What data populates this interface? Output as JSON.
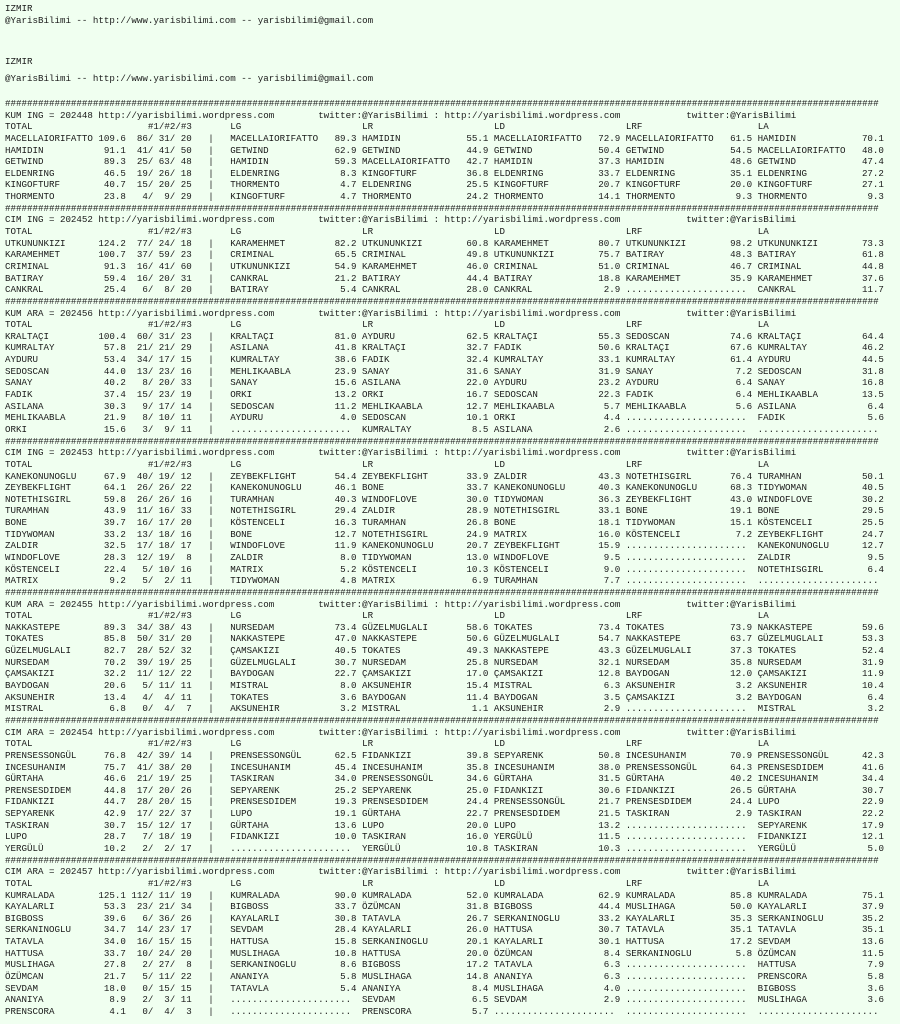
{
  "page_header": [
    {
      "city": "IZMIR",
      "contact": "@YarisBilimi -- http://www.yarisbilimi.com -- yarisbilimi@gmail.com"
    },
    {
      "city": "IZMIR",
      "contact": "@YarisBilimi -- http://www.yarisbilimi.com -- yarisbilimi@gmail.com"
    }
  ],
  "separator": "###############################################################################################################################################################",
  "url": "http://yarisbilimi.wordpress.com",
  "twitter": "twitter:@YarisBilimi",
  "twitter_sep": ":",
  "count_sep": "/",
  "col_sep": "|",
  "empty_marker": "......................",
  "columns": {
    "total": "TOTAL",
    "counts": "#1/#2/#3",
    "blocks": [
      "LG",
      "LR",
      "LD",
      "LRF",
      "LA"
    ]
  },
  "sections": [
    {
      "code": "KUM ING = 202448",
      "rows": [
        [
          "MACELLAIORIFATTO",
          "109.6",
          "86",
          "31",
          "20",
          "MACELLAIORIFATTO",
          "89.3",
          "HAMIDIN",
          "55.1",
          "MACELLAIORIFATTO",
          "72.9",
          "MACELLAIORIFATTO",
          "61.5",
          "HAMIDIN",
          "70.1"
        ],
        [
          "HAMIDIN",
          "91.1",
          "41",
          "41",
          "50",
          "GETWIND",
          "62.9",
          "GETWIND",
          "44.9",
          "GETWIND",
          "50.4",
          "GETWIND",
          "54.5",
          "MACELLAIORIFATTO",
          "48.0"
        ],
        [
          "GETWIND",
          "89.3",
          "25",
          "63",
          "48",
          "HAMIDIN",
          "59.3",
          "MACELLAIORIFATTO",
          "42.7",
          "HAMIDIN",
          "37.3",
          "HAMIDIN",
          "48.6",
          "GETWIND",
          "47.4"
        ],
        [
          "ELDENRING",
          "46.5",
          "19",
          "26",
          "18",
          "ELDENRING",
          "8.3",
          "KINGOFTURF",
          "36.8",
          "ELDENRING",
          "33.7",
          "ELDENRING",
          "35.1",
          "ELDENRING",
          "27.2"
        ],
        [
          "KINGOFTURF",
          "40.7",
          "15",
          "20",
          "25",
          "THORMENTO",
          "4.7",
          "ELDENRING",
          "25.5",
          "KINGOFTURF",
          "20.7",
          "KINGOFTURF",
          "20.0",
          "KINGOFTURF",
          "27.1"
        ],
        [
          "THORMENTO",
          "23.8",
          "4",
          "9",
          "29",
          "KINGOFTURF",
          "4.7",
          "THORMENTO",
          "24.2",
          "THORMENTO",
          "14.1",
          "THORMENTO",
          "9.3",
          "THORMENTO",
          "9.3"
        ]
      ]
    },
    {
      "code": "CIM ING = 202452",
      "rows": [
        [
          "UTKUNUNKIZI",
          "124.2",
          "77",
          "24",
          "18",
          "KARAMEHMET",
          "82.2",
          "UTKUNUNKIZI",
          "60.8",
          "KARAMEHMET",
          "80.7",
          "UTKUNUNKIZI",
          "98.2",
          "UTKUNUNKIZI",
          "73.3"
        ],
        [
          "KARAMEHMET",
          "100.7",
          "37",
          "59",
          "23",
          "CRIMINAL",
          "65.5",
          "CRIMINAL",
          "49.8",
          "UTKUNUNKIZI",
          "75.7",
          "BATIRAY",
          "48.3",
          "BATIRAY",
          "61.8"
        ],
        [
          "CRIMINAL",
          "91.3",
          "16",
          "41",
          "60",
          "UTKUNUNKIZI",
          "54.9",
          "KARAMEHMET",
          "46.0",
          "CRIMINAL",
          "51.0",
          "CRIMINAL",
          "46.7",
          "CRIMINAL",
          "44.8"
        ],
        [
          "BATIRAY",
          "59.4",
          "16",
          "20",
          "31",
          "CANKRAL",
          "21.2",
          "BATIRAY",
          "44.4",
          "BATIRAY",
          "18.8",
          "KARAMEHMET",
          "35.9",
          "KARAMEHMET",
          "37.6"
        ],
        [
          "CANKRAL",
          "25.4",
          "6",
          "8",
          "20",
          "BATIRAY",
          "5.4",
          "CANKRAL",
          "28.0",
          "CANKRAL",
          "2.9",
          "",
          "",
          "CANKRAL",
          "11.7"
        ]
      ]
    },
    {
      "code": "KUM ARA = 202456",
      "rows": [
        [
          "KRALTAÇI",
          "100.4",
          "60",
          "31",
          "23",
          "KRALTAÇI",
          "81.0",
          "AYDURU",
          "62.5",
          "KRALTAÇI",
          "55.3",
          "SEDOSCAN",
          "74.6",
          "KRALTAÇI",
          "64.4"
        ],
        [
          "KUMRALTAY",
          "57.8",
          "21",
          "21",
          "29",
          "ASILANA",
          "41.8",
          "KRALTAÇI",
          "32.7",
          "FADIK",
          "50.6",
          "KRALTAÇI",
          "67.6",
          "KUMRALTAY",
          "46.2"
        ],
        [
          "AYDURU",
          "53.4",
          "34",
          "17",
          "15",
          "KUMRALTAY",
          "38.6",
          "FADIK",
          "32.4",
          "KUMRALTAY",
          "33.1",
          "KUMRALTAY",
          "61.4",
          "AYDURU",
          "44.5"
        ],
        [
          "SEDOSCAN",
          "44.0",
          "13",
          "23",
          "16",
          "MEHLIKAABLA",
          "23.9",
          "SANAY",
          "31.6",
          "SANAY",
          "31.9",
          "SANAY",
          "7.2",
          "SEDOSCAN",
          "31.8"
        ],
        [
          "SANAY",
          "40.2",
          "8",
          "20",
          "33",
          "SANAY",
          "15.6",
          "ASILANA",
          "22.0",
          "AYDURU",
          "23.2",
          "AYDURU",
          "6.4",
          "SANAY",
          "16.8"
        ],
        [
          "FADIK",
          "37.4",
          "15",
          "23",
          "19",
          "ORKI",
          "13.2",
          "ORKI",
          "16.7",
          "SEDOSCAN",
          "22.3",
          "FADIK",
          "6.4",
          "MEHLIKAABLA",
          "13.5"
        ],
        [
          "ASILANA",
          "30.3",
          "9",
          "17",
          "14",
          "SEDOSCAN",
          "11.2",
          "MEHLIKAABLA",
          "12.7",
          "MEHLIKAABLA",
          "5.7",
          "MEHLIKAABLA",
          "5.6",
          "ASILANA",
          "6.4"
        ],
        [
          "MEHLIKAABLA",
          "21.9",
          "8",
          "10",
          "11",
          "AYDURU",
          "4.0",
          "SEDOSCAN",
          "10.1",
          "ORKI",
          "4.4",
          "",
          "",
          "FADIK",
          "5.6"
        ],
        [
          "ORKI",
          "15.6",
          "3",
          "9",
          "11",
          "",
          "",
          "KUMRALTAY",
          "8.5",
          "ASILANA",
          "2.6",
          "",
          "",
          "",
          ""
        ]
      ]
    },
    {
      "code": "CIM ING = 202453",
      "rows": [
        [
          "KANEKONUNOGLU",
          "67.9",
          "40",
          "19",
          "12",
          "ZEYBEKFLIGHT",
          "54.4",
          "ZEYBEKFLIGHT",
          "33.9",
          "ZALDIR",
          "43.3",
          "NOTETHISGIRL",
          "76.4",
          "TURAMHAN",
          "50.1"
        ],
        [
          "ZEYBEKFLIGHT",
          "64.1",
          "26",
          "26",
          "22",
          "KANEKONUNOGLU",
          "46.1",
          "BONE",
          "33.7",
          "KANEKONUNOGLU",
          "40.3",
          "KANEKONUNOGLU",
          "68.3",
          "TIDYWOMAN",
          "40.5"
        ],
        [
          "NOTETHISGIRL",
          "59.8",
          "26",
          "26",
          "16",
          "TURAMHAN",
          "40.3",
          "WINDOFLOVE",
          "30.0",
          "TIDYWOMAN",
          "36.3",
          "ZEYBEKFLIGHT",
          "43.0",
          "WINDOFLOVE",
          "30.2"
        ],
        [
          "TURAMHAN",
          "43.9",
          "11",
          "16",
          "33",
          "NOTETHISGIRL",
          "29.4",
          "ZALDIR",
          "28.9",
          "NOTETHISGIRL",
          "33.1",
          "BONE",
          "19.1",
          "BONE",
          "29.5"
        ],
        [
          "BONE",
          "39.7",
          "16",
          "17",
          "20",
          "KÖSTENCELI",
          "16.3",
          "TURAMHAN",
          "26.8",
          "BONE",
          "18.1",
          "TIDYWOMAN",
          "15.1",
          "KÖSTENCELI",
          "25.5"
        ],
        [
          "TIDYWOMAN",
          "33.2",
          "13",
          "18",
          "16",
          "BONE",
          "12.7",
          "NOTETHISGIRL",
          "24.9",
          "MATRIX",
          "16.0",
          "KÖSTENCELI",
          "7.2",
          "ZEYBEKFLIGHT",
          "24.7"
        ],
        [
          "ZALDIR",
          "32.5",
          "17",
          "18",
          "17",
          "WINDOFLOVE",
          "11.9",
          "KANEKONUNOGLU",
          "20.7",
          "ZEYBEKFLIGHT",
          "15.9",
          "",
          "",
          "KANEKONUNOGLU",
          "12.7"
        ],
        [
          "WINDOFLOVE",
          "28.3",
          "12",
          "19",
          "8",
          "ZALDIR",
          "8.0",
          "TIDYWOMAN",
          "13.0",
          "WINDOFLOVE",
          "9.5",
          "",
          "",
          "ZALDIR",
          "9.5"
        ],
        [
          "KÖSTENCELI",
          "22.4",
          "5",
          "10",
          "16",
          "MATRIX",
          "5.2",
          "KÖSTENCELI",
          "10.3",
          "KÖSTENCELI",
          "9.0",
          "",
          "",
          "NOTETHISGIRL",
          "6.4"
        ],
        [
          "MATRIX",
          "9.2",
          "5",
          "2",
          "11",
          "TIDYWOMAN",
          "4.8",
          "MATRIX",
          "6.9",
          "TURAMHAN",
          "7.7",
          "",
          "",
          "",
          ""
        ]
      ]
    },
    {
      "code": "KUM ARA = 202455",
      "rows": [
        [
          "NAKKASTEPE",
          "89.3",
          "34",
          "38",
          "43",
          "NURSEDAM",
          "73.4",
          "GÜZELMUGLALI",
          "58.6",
          "TOKATES",
          "73.4",
          "TOKATES",
          "73.9",
          "NAKKASTEPE",
          "59.6"
        ],
        [
          "TOKATES",
          "85.8",
          "50",
          "31",
          "20",
          "NAKKASTEPE",
          "47.0",
          "NAKKASTEPE",
          "50.6",
          "GÜZELMUGLALI",
          "54.7",
          "NAKKASTEPE",
          "63.7",
          "GÜZELMUGLALI",
          "53.3"
        ],
        [
          "GÜZELMUGLALI",
          "82.7",
          "28",
          "52",
          "32",
          "ÇAMSAKIZI",
          "40.5",
          "TOKATES",
          "49.3",
          "NAKKASTEPE",
          "43.3",
          "GÜZELMUGLALI",
          "37.3",
          "TOKATES",
          "52.4"
        ],
        [
          "NURSEDAM",
          "70.2",
          "39",
          "19",
          "25",
          "GÜZELMUGLALI",
          "30.7",
          "NURSEDAM",
          "25.8",
          "NURSEDAM",
          "32.1",
          "NURSEDAM",
          "35.8",
          "NURSEDAM",
          "31.9"
        ],
        [
          "ÇAMSAKIZI",
          "32.2",
          "11",
          "12",
          "22",
          "BAYDOGAN",
          "22.7",
          "ÇAMSAKIZI",
          "17.0",
          "ÇAMSAKIZI",
          "12.8",
          "BAYDOGAN",
          "12.0",
          "ÇAMSAKIZI",
          "11.9"
        ],
        [
          "BAYDOGAN",
          "20.6",
          "5",
          "11",
          "11",
          "MISTRAL",
          "8.0",
          "AKSUNEHIR",
          "15.4",
          "MISTRAL",
          "6.3",
          "AKSUNEHIR",
          "3.2",
          "AKSUNEHIR",
          "10.4"
        ],
        [
          "AKSUNEHIR",
          "13.4",
          "4",
          "4",
          "11",
          "TOKATES",
          "3.6",
          "BAYDOGAN",
          "11.4",
          "BAYDOGAN",
          "3.5",
          "ÇAMSAKIZI",
          "3.2",
          "BAYDOGAN",
          "6.4"
        ],
        [
          "MISTRAL",
          "6.8",
          "0",
          "4",
          "7",
          "AKSUNEHIR",
          "3.2",
          "MISTRAL",
          "1.1",
          "AKSUNEHIR",
          "2.9",
          "",
          "",
          "MISTRAL",
          "3.2"
        ]
      ]
    },
    {
      "code": "CIM ARA = 202454",
      "rows": [
        [
          "PRENSESSONGÜL",
          "76.8",
          "42",
          "39",
          "14",
          "PRENSESSONGÜL",
          "62.5",
          "FIDANKIZI",
          "39.8",
          "SEPYARENK",
          "50.8",
          "INCESUHANIM",
          "70.9",
          "PRENSESSONGÜL",
          "42.3"
        ],
        [
          "INCESUHANIM",
          "75.7",
          "41",
          "38",
          "20",
          "INCESUHANIM",
          "45.4",
          "INCESUHANIM",
          "35.8",
          "INCESUHANIM",
          "38.0",
          "PRENSESSONGÜL",
          "64.3",
          "PRENSESDIDEM",
          "41.6"
        ],
        [
          "GÜRTAHA",
          "46.6",
          "21",
          "19",
          "25",
          "TASKIRAN",
          "34.0",
          "PRENSESSONGÜL",
          "34.6",
          "GÜRTAHA",
          "31.5",
          "GÜRTAHA",
          "40.2",
          "INCESUHANIM",
          "34.4"
        ],
        [
          "PRENSESDIDEM",
          "44.8",
          "17",
          "20",
          "26",
          "SEPYARENK",
          "25.2",
          "SEPYARENK",
          "25.0",
          "FIDANKIZI",
          "30.6",
          "FIDANKIZI",
          "26.5",
          "GÜRTAHA",
          "30.7"
        ],
        [
          "FIDANKIZI",
          "44.7",
          "28",
          "20",
          "15",
          "PRENSESDIDEM",
          "19.3",
          "PRENSESDIDEM",
          "24.4",
          "PRENSESSONGÜL",
          "21.7",
          "PRENSESDIDEM",
          "24.4",
          "LUPO",
          "22.9"
        ],
        [
          "SEPYARENK",
          "42.9",
          "17",
          "22",
          "37",
          "LUPO",
          "19.1",
          "GÜRTAHA",
          "22.7",
          "PRENSESDIDEM",
          "21.5",
          "TASKIRAN",
          "2.9",
          "TASKIRAN",
          "22.2"
        ],
        [
          "TASKIRAN",
          "30.7",
          "15",
          "12",
          "17",
          "GÜRTAHA",
          "13.6",
          "LUPO",
          "20.0",
          "LUPO",
          "13.2",
          "",
          "",
          "SEPYARENK",
          "17.9"
        ],
        [
          "LUPO",
          "28.7",
          "7",
          "18",
          "19",
          "FIDANKIZI",
          "10.0",
          "TASKIRAN",
          "16.0",
          "YERGÜLÜ",
          "11.5",
          "",
          "",
          "FIDANKIZI",
          "12.1"
        ],
        [
          "YERGÜLÜ",
          "10.2",
          "2",
          "2",
          "17",
          "",
          "",
          "YERGÜLÜ",
          "10.8",
          "TASKIRAN",
          "10.3",
          "",
          "",
          "YERGÜLÜ",
          "5.0"
        ]
      ]
    },
    {
      "code": "CIM ARA = 202457",
      "rows": [
        [
          "KUMRALADA",
          "125.1",
          "112",
          "11",
          "19",
          "KUMRALADA",
          "90.0",
          "KUMRALADA",
          "52.0",
          "KUMRALADA",
          "62.9",
          "KUMRALADA",
          "85.8",
          "KUMRALADA",
          "75.1"
        ],
        [
          "KAYALARLI",
          "53.3",
          "23",
          "21",
          "34",
          "BIGBOSS",
          "33.7",
          "ÖZÜMCAN",
          "31.8",
          "BIGBOSS",
          "44.4",
          "MUSLIHAGA",
          "50.0",
          "KAYALARLI",
          "37.9"
        ],
        [
          "BIGBOSS",
          "39.6",
          "6",
          "36",
          "26",
          "KAYALARLI",
          "30.8",
          "TATAVLA",
          "26.7",
          "SERKANINOGLU",
          "33.2",
          "KAYALARLI",
          "35.3",
          "SERKANINOGLU",
          "35.2"
        ],
        [
          "SERKANINOGLU",
          "34.7",
          "14",
          "23",
          "17",
          "SEVDAM",
          "28.4",
          "KAYALARLI",
          "26.0",
          "HATTUSA",
          "30.7",
          "TATAVLA",
          "35.1",
          "TATAVLA",
          "35.1"
        ],
        [
          "TATAVLA",
          "34.0",
          "16",
          "15",
          "15",
          "HATTUSA",
          "15.8",
          "SERKANINOGLU",
          "20.1",
          "KAYALARLI",
          "30.1",
          "HATTUSA",
          "17.2",
          "SEVDAM",
          "13.6"
        ],
        [
          "HATTUSA",
          "33.7",
          "10",
          "24",
          "20",
          "MUSLIHAGA",
          "10.8",
          "HATTUSA",
          "20.0",
          "ÖZÜMCAN",
          "8.4",
          "SERKANINOGLU",
          "5.8",
          "ÖZÜMCAN",
          "11.5"
        ],
        [
          "MUSLIHAGA",
          "27.8",
          "2",
          "27",
          "8",
          "SERKANINOGLU",
          "8.6",
          "BIGBOSS",
          "17.2",
          "TATAVLA",
          "6.3",
          "",
          "",
          "HATTUSA",
          "7.9"
        ],
        [
          "ÖZÜMCAN",
          "21.7",
          "5",
          "11",
          "22",
          "ANANIYA",
          "5.8",
          "MUSLIHAGA",
          "14.8",
          "ANANIYA",
          "6.3",
          "",
          "",
          "PRENSCORA",
          "5.8"
        ],
        [
          "SEVDAM",
          "18.0",
          "0",
          "15",
          "15",
          "TATAVLA",
          "5.4",
          "ANANIYA",
          "8.4",
          "MUSLIHAGA",
          "4.0",
          "",
          "",
          "BIGBOSS",
          "3.6"
        ],
        [
          "ANANIYA",
          "8.9",
          "2",
          "3",
          "11",
          "",
          "",
          "SEVDAM",
          "6.5",
          "SEVDAM",
          "2.9",
          "",
          "",
          "MUSLIHAGA",
          "3.6"
        ],
        [
          "PRENSCORA",
          "4.1",
          "0",
          "4",
          "3",
          "",
          "",
          "PRENSCORA",
          "5.7",
          "",
          "",
          "",
          "",
          "",
          ""
        ]
      ]
    }
  ]
}
